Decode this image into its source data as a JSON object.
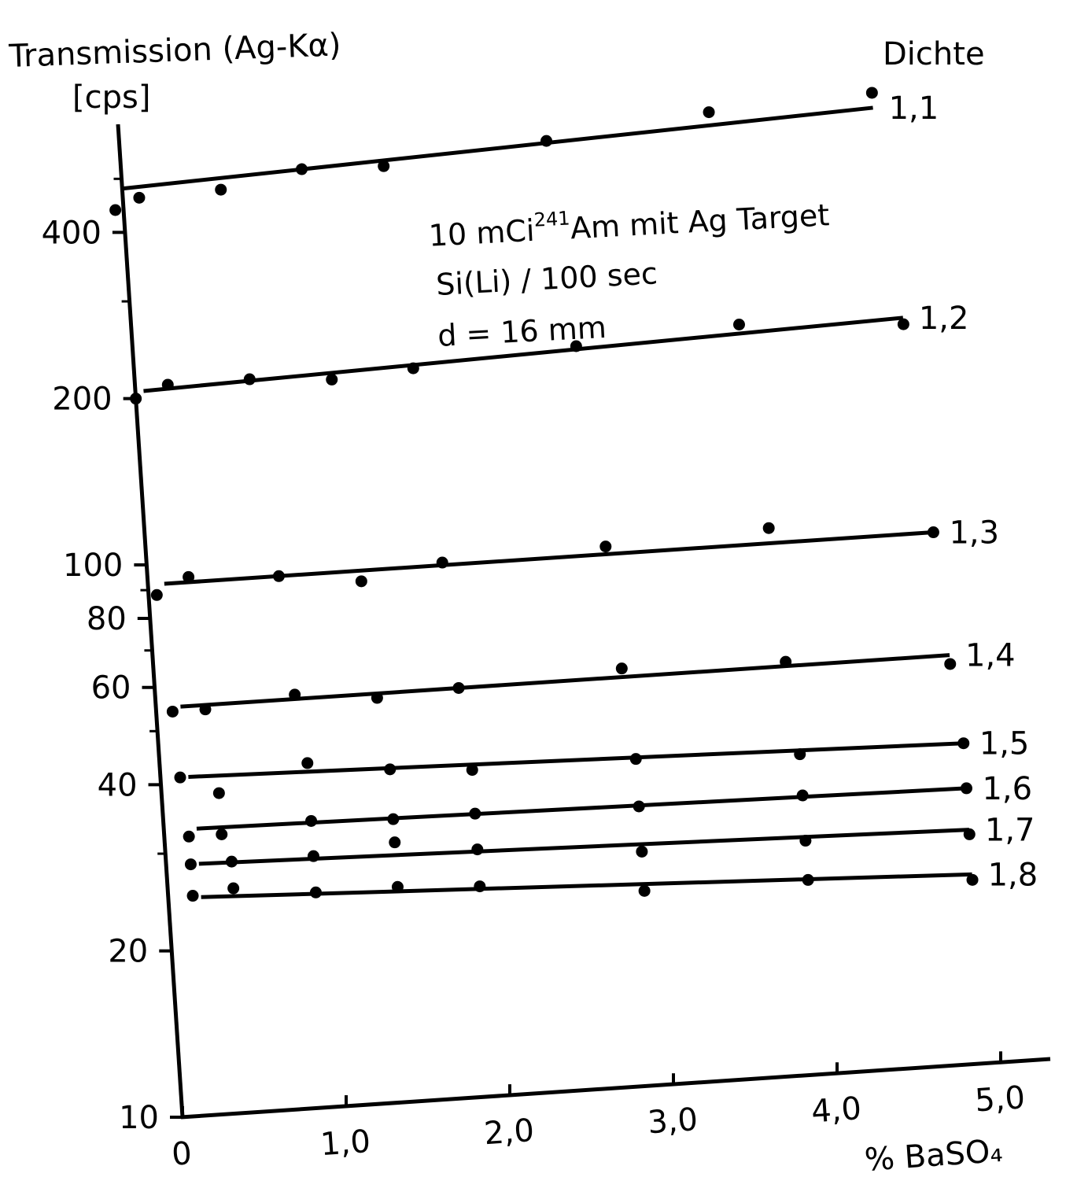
{
  "chart_data": {
    "type": "scatter",
    "title": "",
    "ylabel": "Transmission (Ag-Kα)",
    "ylabel_unit": "[cps]",
    "xlabel": "% BaSO₄",
    "yscale": "log",
    "ylim": [
      10,
      520
    ],
    "xlim": [
      0,
      5.2
    ],
    "grid": false,
    "y_ticks": [
      "10",
      "20",
      "40",
      "60",
      "80",
      "100",
      "200",
      "400"
    ],
    "x_ticks": [
      "0",
      "1,0",
      "2,0",
      "3,0",
      "4,0",
      "5,0"
    ],
    "legend_title": "Dichte",
    "annotation_lines": [
      "10 mCi",
      "241",
      "Am mit Ag Target",
      "Si(Li) / 100 sec",
      "d = 16 mm"
    ],
    "series": [
      {
        "name": "1,1",
        "x": [
          -0.05,
          0.1,
          0.6,
          1.1,
          1.6,
          2.6,
          3.6,
          4.6
        ],
        "y": [
          440,
          460,
          465,
          495,
          490,
          520,
          560,
          580
        ],
        "fit_start": 480,
        "fit_end": 545
      },
      {
        "name": "1,2",
        "x": [
          0.0,
          0.2,
          0.7,
          1.2,
          1.7,
          2.7,
          3.7,
          4.7
        ],
        "y": [
          200,
          210,
          210,
          205,
          210,
          220,
          230,
          220
        ],
        "fit_start": 206,
        "fit_end": 226
      },
      {
        "name": "1,3",
        "x": [
          0.05,
          0.25,
          0.8,
          1.3,
          1.8,
          2.8,
          3.8,
          4.8
        ],
        "y": [
          88,
          94,
          92,
          88,
          93,
          95,
          98,
          92
        ],
        "fit_start": 92,
        "fit_end": 92
      },
      {
        "name": "1,4",
        "x": [
          0.1,
          0.3,
          0.85,
          1.35,
          1.85,
          2.85,
          3.85,
          4.85
        ],
        "y": [
          54,
          54,
          56,
          54,
          55,
          57,
          56,
          53
        ],
        "fit_start": 55,
        "fit_end": 55
      },
      {
        "name": "1,5",
        "x": [
          0.12,
          0.35,
          0.9,
          1.4,
          1.9,
          2.9,
          3.9,
          4.9
        ],
        "y": [
          41,
          38,
          42,
          40,
          39,
          39,
          38,
          38
        ],
        "fit_start": 41,
        "fit_end": 38
      },
      {
        "name": "1,6",
        "x": [
          0.15,
          0.35,
          0.9,
          1.4,
          1.9,
          2.9,
          3.9,
          4.9
        ],
        "y": [
          32,
          32,
          33,
          32.5,
          32.5,
          32,
          32,
          31.5
        ],
        "fit_start": 33,
        "fit_end": 31.5
      },
      {
        "name": "1,7",
        "x": [
          0.15,
          0.4,
          0.9,
          1.4,
          1.9,
          2.9,
          3.9,
          4.9
        ],
        "y": [
          28.5,
          28.5,
          28.5,
          29.5,
          28,
          26.5,
          26.5,
          26
        ],
        "fit_start": 28.5,
        "fit_end": 26.5
      },
      {
        "name": "1,8",
        "x": [
          0.15,
          0.4,
          0.9,
          1.4,
          1.9,
          2.9,
          3.9,
          4.9
        ],
        "y": [
          25,
          25.5,
          24.5,
          24.5,
          24,
          22.5,
          22.5,
          21.5
        ],
        "fit_start": 24.8,
        "fit_end": 22
      }
    ]
  }
}
